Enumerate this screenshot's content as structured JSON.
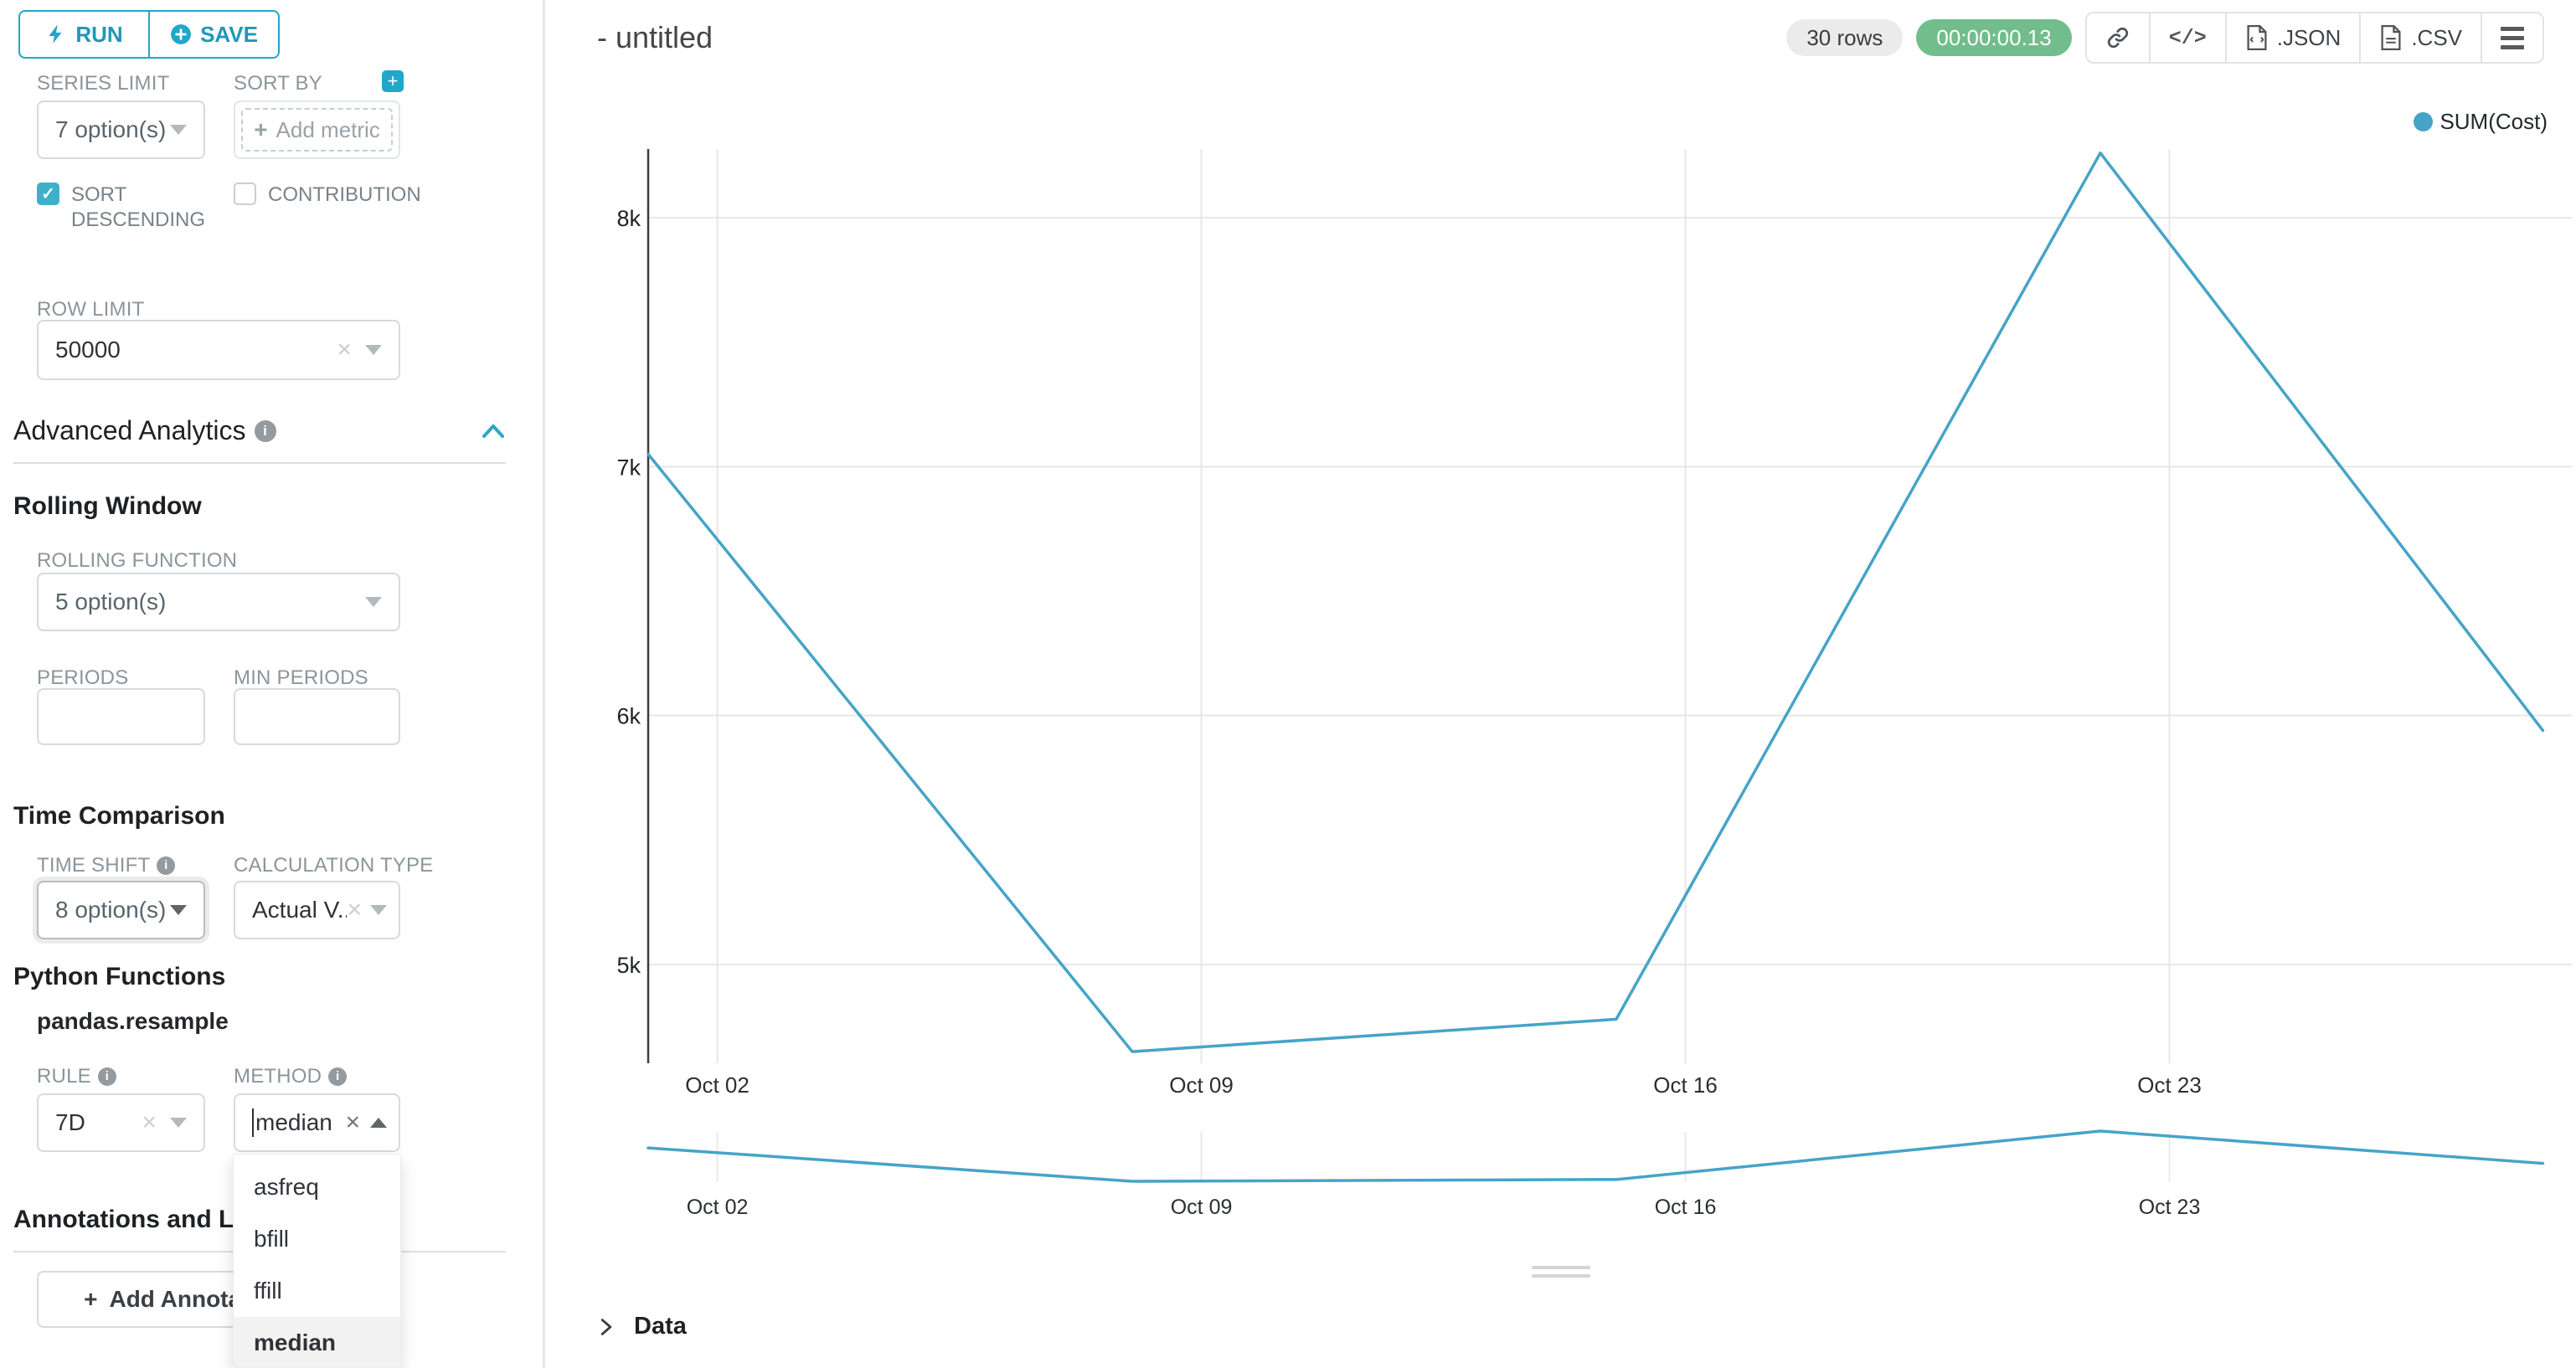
{
  "toolbar": {
    "run_label": "RUN",
    "save_label": "SAVE"
  },
  "controls": {
    "series_limit": {
      "label": "SERIES LIMIT",
      "value": "7 option(s)"
    },
    "sort_by": {
      "label": "SORT BY",
      "placeholder": "Add metric"
    },
    "sort_descending": {
      "label": "SORT DESCENDING",
      "checked": true
    },
    "contribution": {
      "label": "CONTRIBUTION",
      "checked": false
    },
    "row_limit": {
      "label": "ROW LIMIT",
      "value": "50000"
    },
    "advanced_analytics": {
      "title": "Advanced Analytics"
    },
    "rolling_window": {
      "title": "Rolling Window"
    },
    "rolling_function": {
      "label": "ROLLING FUNCTION",
      "value": "5 option(s)"
    },
    "periods": {
      "label": "PERIODS",
      "value": ""
    },
    "min_periods": {
      "label": "MIN PERIODS",
      "value": ""
    },
    "time_comparison": {
      "title": "Time Comparison"
    },
    "time_shift": {
      "label": "TIME SHIFT",
      "value": "8 option(s)"
    },
    "calculation_type": {
      "label": "CALCULATION TYPE",
      "value": "Actual V..."
    },
    "python_functions": {
      "title": "Python Functions",
      "subtitle": "pandas.resample"
    },
    "rule": {
      "label": "RULE",
      "value": "7D"
    },
    "method": {
      "label": "METHOD",
      "value": "median",
      "options": [
        "asfreq",
        "bfill",
        "ffill",
        "median"
      ],
      "selected_option": "median"
    },
    "annotations": {
      "title": "Annotations and Layers",
      "add_button_label": "Add Annotation Layer"
    }
  },
  "header": {
    "title": "- untitled",
    "rows_badge": "30 rows",
    "timer_badge": "00:00:00.13",
    "json_label": ".JSON",
    "csv_label": ".CSV"
  },
  "data_panel": {
    "label": "Data"
  },
  "colors": {
    "primary_teal": "#20a7c9",
    "line_blue": "#45a4c7",
    "timer_green": "#71bd8c",
    "grid_gray": "#e7e7e7",
    "axis_dark": "#3b3e40"
  },
  "chart_data": {
    "type": "line",
    "title": "",
    "legend_position": "top-right",
    "grid": true,
    "series": [
      {
        "name": "SUM(Cost)",
        "color": "#45a4c7",
        "points": [
          {
            "x_day": 0,
            "x_label_est": "Oct 01",
            "value": 7050
          },
          {
            "x_day": 7,
            "x_label_est": "Oct 08",
            "value": 4650
          },
          {
            "x_day": 14,
            "x_label_est": "Oct 15",
            "value": 4780
          },
          {
            "x_day": 21,
            "x_label_est": "Oct 22",
            "value": 8260
          },
          {
            "x_day": 27.4,
            "x_label_est": "Oct 28",
            "value": 5940
          }
        ]
      }
    ],
    "x_ticks": [
      {
        "day": 1,
        "label": "Oct 02"
      },
      {
        "day": 8,
        "label": "Oct 09"
      },
      {
        "day": 15,
        "label": "Oct 16"
      },
      {
        "day": 22,
        "label": "Oct 23"
      }
    ],
    "y_ticks": [
      {
        "value": 8000,
        "label": "8k"
      },
      {
        "value": 7000,
        "label": "7k"
      },
      {
        "value": 6000,
        "label": "6k"
      },
      {
        "value": 5000,
        "label": "5k"
      }
    ],
    "y_range_est": [
      4400,
      8550
    ],
    "has_mini_preview": true
  }
}
